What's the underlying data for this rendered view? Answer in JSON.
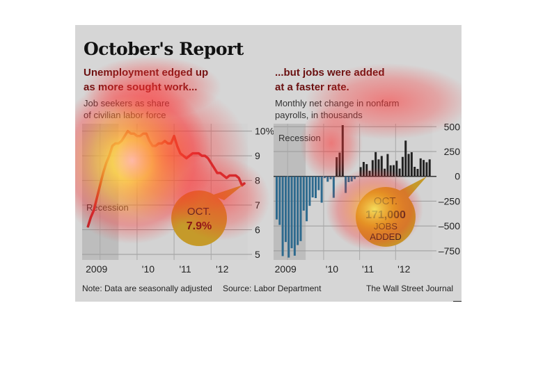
{
  "title": "October's Report",
  "left": {
    "subtitle_line1": "Unemployment edged up",
    "subtitle_line2": "as more sought work...",
    "desc_line1": "Job seekers as share",
    "desc_line2": "of civilian labor force",
    "recession_label": "Recession",
    "callout_top": "OCT.",
    "callout_value": "7.9%"
  },
  "right": {
    "subtitle_line1": "...but jobs were added",
    "subtitle_line2": "at a faster rate.",
    "desc_line1": "Monthly net change in nonfarm",
    "desc_line2": "payrolls, in thousands",
    "recession_label": "Recession",
    "callout_top": "OCT.",
    "callout_value": "171,000",
    "callout_line3": "JOBS",
    "callout_line4": "ADDED"
  },
  "footer": {
    "note": "Note: Data are seasonally adjusted",
    "source": "Source: Labor Department",
    "brand": "The Wall Street Journal"
  },
  "colors": {
    "line": "#c0262a",
    "bar_neg": "#2e6a8e",
    "bar_pos": "#222222",
    "callout": "#c59a2a",
    "heat_hot": "#fff7c0",
    "heat_mid": "#ff2a2a"
  },
  "chart_data": [
    {
      "type": "line",
      "title": "",
      "ylabel": "",
      "ylim": [
        5,
        10.3
      ],
      "yticks": [
        "10%",
        "9",
        "8",
        "7",
        "6",
        "5"
      ],
      "ytick_values": [
        10,
        9,
        8,
        7,
        6,
        5
      ],
      "xticks": [
        "2009",
        "'10",
        "'11",
        "'12"
      ],
      "x_start": "2008-09",
      "recession_months": 10,
      "values": [
        6.1,
        6.5,
        6.8,
        7.3,
        7.8,
        8.3,
        8.7,
        9.0,
        9.4,
        9.5,
        9.5,
        9.6,
        9.8,
        10.0,
        9.9,
        9.9,
        9.8,
        9.8,
        9.9,
        9.9,
        9.6,
        9.4,
        9.4,
        9.5,
        9.5,
        9.6,
        9.5,
        9.5,
        9.8,
        9.4,
        9.1,
        9.0,
        8.9,
        9.0,
        9.1,
        9.1,
        9.1,
        9.0,
        9.0,
        8.9,
        8.7,
        8.5,
        8.3,
        8.3,
        8.2,
        8.1,
        8.2,
        8.2,
        8.2,
        8.1,
        7.8,
        7.9
      ]
    },
    {
      "type": "bar",
      "title": "",
      "ylabel": "",
      "ylim": [
        -800,
        530
      ],
      "yticks": [
        "500",
        "250",
        "0",
        "–250",
        "–500",
        "–750"
      ],
      "ytick_values": [
        500,
        250,
        0,
        -250,
        -500,
        -750
      ],
      "xticks": [
        "2009",
        "'10",
        "'11",
        "'12"
      ],
      "x_start": "2008-09",
      "recession_months": 10,
      "values": [
        -434,
        -489,
        -803,
        -661,
        -818,
        -724,
        -799,
        -692,
        -652,
        -345,
        -452,
        -297,
        -212,
        -219,
        -139,
        -265,
        -17,
        -54,
        -28,
        -216,
        193,
        239,
        516,
        -167,
        -58,
        -51,
        -27,
        -4,
        93,
        145,
        123,
        56,
        163,
        244,
        171,
        205,
        77,
        225,
        111,
        113,
        157,
        78,
        196,
        360,
        226,
        243,
        96,
        75,
        181,
        165,
        142,
        171
      ]
    }
  ]
}
